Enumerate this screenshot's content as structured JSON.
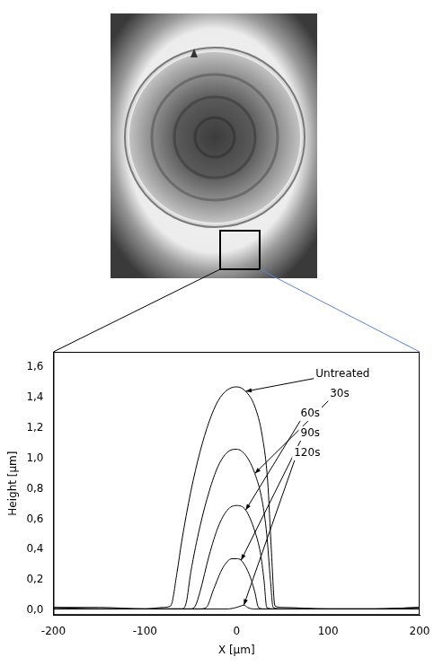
{
  "chart_data": {
    "type": "line",
    "x_label": "X [μm]",
    "y_label": "Height [μm]",
    "xlim": [
      -200,
      200
    ],
    "xticks": [
      -200,
      -100,
      0,
      100,
      200
    ],
    "ylim": [
      -0.03,
      1.7
    ],
    "yticks": [
      {
        "value": 0,
        "label": "0,0"
      },
      {
        "value": 0.2,
        "label": "0,2"
      },
      {
        "value": 0.4,
        "label": "0,4"
      },
      {
        "value": 0.6,
        "label": "0,6"
      },
      {
        "value": 0.8,
        "label": "0,8"
      },
      {
        "value": 1.0,
        "label": "1,0"
      },
      {
        "value": 1.2,
        "label": "1,2"
      },
      {
        "value": 1.4,
        "label": "1,4"
      },
      {
        "value": 1.6,
        "label": "1,6"
      }
    ],
    "grid": false,
    "series": [
      {
        "name": "Untreated",
        "color": "#000000",
        "x": [
          -200,
          -150,
          -100,
          -80,
          -72,
          -65,
          -60,
          -50,
          -40,
          -30,
          -20,
          -10,
          0,
          10,
          20,
          28,
          34,
          38,
          42,
          50,
          100,
          150,
          200
        ],
        "values": [
          0.02,
          0.02,
          0.01,
          0.02,
          0.03,
          0.25,
          0.45,
          0.78,
          1.04,
          1.24,
          1.38,
          1.45,
          1.47,
          1.44,
          1.34,
          1.15,
          0.85,
          0.4,
          0.03,
          0.02,
          0.01,
          0.01,
          0.02
        ]
      },
      {
        "name": "30s",
        "color": "#000000",
        "x": [
          -200,
          -150,
          -100,
          -60,
          -55,
          -50,
          -40,
          -30,
          -20,
          -10,
          0,
          10,
          20,
          28,
          33,
          37,
          40,
          50,
          100,
          150,
          200
        ],
        "values": [
          0.02,
          0.01,
          0.01,
          0.01,
          0.05,
          0.25,
          0.55,
          0.78,
          0.95,
          1.04,
          1.06,
          1.02,
          0.9,
          0.72,
          0.5,
          0.2,
          0.02,
          0.01,
          0.01,
          0.01,
          0.02
        ]
      },
      {
        "name": "60s",
        "color": "#000000",
        "x": [
          -200,
          -150,
          -100,
          -50,
          -45,
          -40,
          -30,
          -20,
          -10,
          0,
          10,
          20,
          26,
          30,
          33,
          40,
          100,
          150,
          200
        ],
        "values": [
          0.01,
          0.01,
          0.01,
          0.01,
          0.03,
          0.12,
          0.36,
          0.55,
          0.66,
          0.69,
          0.66,
          0.52,
          0.38,
          0.2,
          0.02,
          0.01,
          0.01,
          0.01,
          0.01
        ]
      },
      {
        "name": "90s",
        "color": "#000000",
        "x": [
          -200,
          -150,
          -100,
          -40,
          -33,
          -25,
          -15,
          -5,
          0,
          5,
          15,
          20,
          24,
          30,
          100,
          150,
          200
        ],
        "values": [
          0.01,
          0.01,
          0.01,
          0.01,
          0.02,
          0.14,
          0.28,
          0.34,
          0.34,
          0.33,
          0.22,
          0.12,
          0.02,
          0.01,
          0.01,
          0.01,
          0.01
        ]
      },
      {
        "name": "120s",
        "color": "#000000",
        "x": [
          -200,
          -150,
          -100,
          -50,
          -10,
          0,
          5,
          8,
          12,
          18,
          50,
          100,
          150,
          200
        ],
        "values": [
          0.01,
          0.01,
          0.01,
          0.01,
          0.01,
          0.02,
          0.03,
          0.035,
          0.02,
          0.01,
          0.01,
          0.01,
          0.01,
          0.01
        ]
      }
    ],
    "annotations": [
      {
        "text": "Untreated",
        "x": 10,
        "y": 1.44
      },
      {
        "text": "30s",
        "x": 20,
        "y": 0.9
      },
      {
        "text": "60s",
        "x": 10,
        "y": 0.66
      },
      {
        "text": "90s",
        "x": 5,
        "y": 0.33
      },
      {
        "text": "120s",
        "x": 8,
        "y": 0.035
      }
    ]
  }
}
